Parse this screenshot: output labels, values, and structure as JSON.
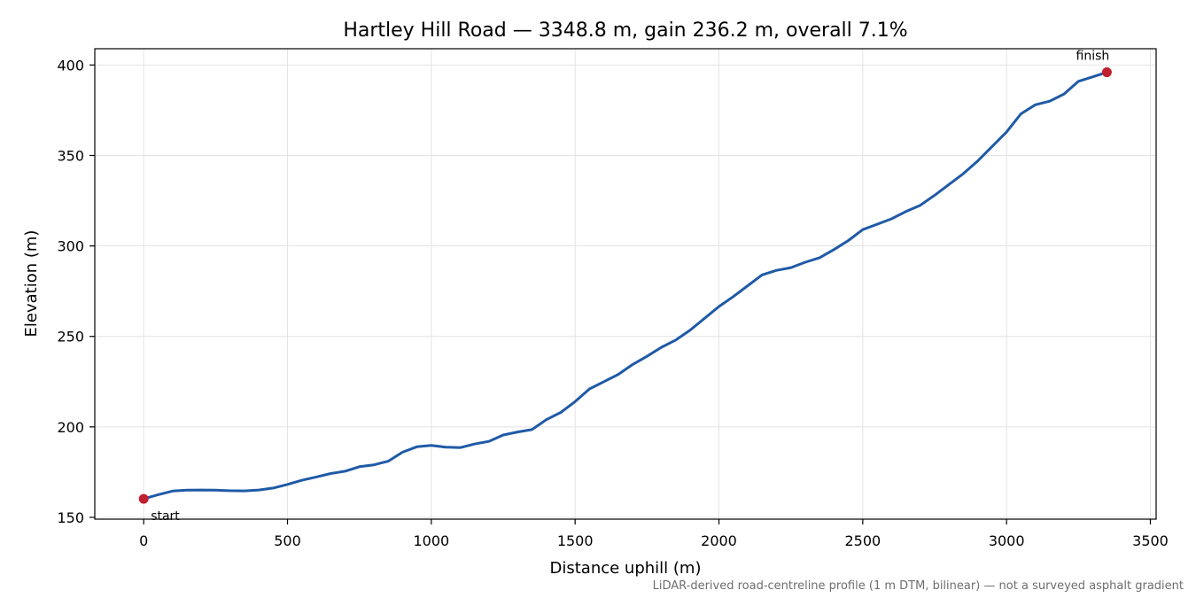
{
  "chart_data": {
    "type": "line",
    "title": "Hartley Hill Road — 3348.8 m, gain 236.2 m, overall 7.1%",
    "xlabel": "Distance uphill (m)",
    "ylabel": "Elevation (m)",
    "footnote": "LiDAR-derived road-centreline profile (1 m DTM, bilinear) — not a surveyed asphalt gradient",
    "xlim": [
      -170,
      3520
    ],
    "ylim": [
      149,
      409
    ],
    "x_ticks": [
      0,
      500,
      1000,
      1500,
      2000,
      2500,
      3000,
      3500
    ],
    "y_ticks": [
      150,
      200,
      250,
      300,
      350,
      400
    ],
    "grid": true,
    "line_color": "#1f5aa6",
    "marker_color": "#c0202f",
    "series": [
      {
        "x": [
          0,
          50,
          100,
          150,
          200,
          250,
          300,
          350,
          400,
          450,
          500,
          550,
          600,
          650,
          700,
          750,
          800,
          850,
          900,
          950,
          1000,
          1050,
          1100,
          1150,
          1200,
          1250,
          1300,
          1350,
          1400,
          1450,
          1500,
          1550,
          1600,
          1650,
          1700,
          1750,
          1800,
          1850,
          1900,
          1950,
          2000,
          2050,
          2100,
          2150,
          2200,
          2250,
          2300,
          2350,
          2400,
          2450,
          2500,
          2550,
          2600,
          2650,
          2700,
          2750,
          2800,
          2850,
          2900,
          2950,
          3000,
          3050,
          3100,
          3150,
          3200,
          3250,
          3300,
          3348.8
        ],
        "y": [
          160.2,
          162.5,
          164.5,
          165.0,
          165.1,
          165.0,
          164.7,
          164.6,
          165.1,
          166.2,
          168.2,
          170.5,
          172.3,
          174.2,
          175.5,
          178.0,
          179.0,
          181.0,
          186.0,
          189.0,
          189.8,
          188.8,
          188.5,
          190.5,
          192.0,
          195.5,
          197.2,
          198.5,
          204.0,
          208.0,
          214.0,
          221.0,
          225.0,
          229.0,
          234.5,
          239.0,
          244.0,
          248.0,
          253.5,
          260.0,
          266.5,
          272.0,
          278.0,
          284.0,
          286.5,
          288.0,
          291.0,
          293.5,
          298.0,
          303.0,
          309.0,
          312.0,
          315.0,
          319.0,
          322.5,
          328.0,
          334.0,
          340.0,
          347.0,
          355.0,
          363.0,
          373.0,
          378.0,
          380.0,
          384.0,
          391.0,
          393.5,
          396.0
        ]
      }
    ],
    "annotations": [
      {
        "text": "start",
        "x": 0,
        "y": 160.2
      },
      {
        "text": "finish",
        "x": 3348.8,
        "y": 396.0
      }
    ]
  }
}
